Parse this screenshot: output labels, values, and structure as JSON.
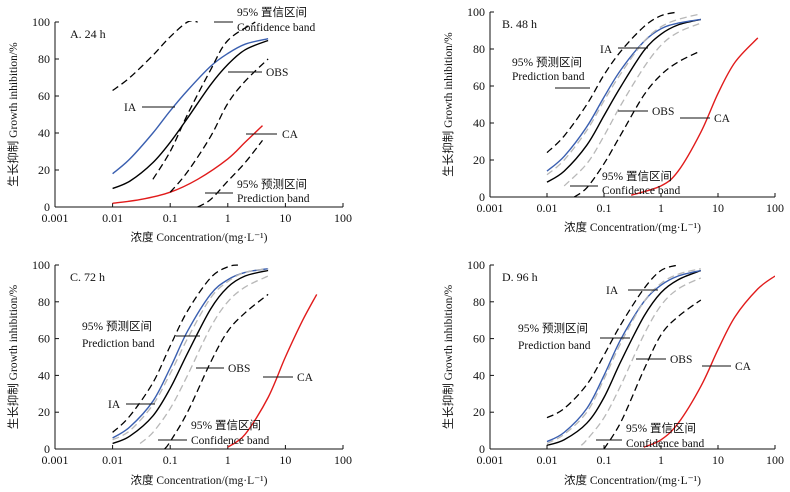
{
  "figure": {
    "panels": [
      {
        "panel_label": "A. 24 h",
        "ylabel": "生长抑制 Growth inhibition/%",
        "xlabel": "浓度 Concentration/(mg·L⁻¹)",
        "xticks": [
          "0.001",
          "0.01",
          "0.1",
          "1",
          "10",
          "100"
        ],
        "yticks": [
          "0",
          "20",
          "40",
          "60",
          "80",
          "100"
        ],
        "annotations": {
          "ia": "IA",
          "obs": "OBS",
          "ca": "CA",
          "confidence_zh": "95% 置信区间",
          "confidence_en": "Confidence band",
          "prediction_zh": "95% 预测区间",
          "prediction_en": "Prediction band"
        }
      },
      {
        "panel_label": "B. 48 h",
        "ylabel": "生长抑制 Growth inhibition/%",
        "xlabel": "浓度 Concentration/(mg·L⁻¹)",
        "xticks": [
          "0.001",
          "0.01",
          "0.1",
          "1",
          "10",
          "100"
        ],
        "yticks": [
          "0",
          "20",
          "40",
          "60",
          "80",
          "100"
        ],
        "annotations": {
          "ia": "IA",
          "obs": "OBS",
          "ca": "CA",
          "confidence_zh": "95% 置信区间",
          "confidence_en": "Confidence band",
          "prediction_zh": "95% 预测区间",
          "prediction_en": "Prediction band"
        }
      },
      {
        "panel_label": "C. 72 h",
        "ylabel": "生长抑制 Growth inhibition/%",
        "xlabel": "浓度 Concentration/(mg·L⁻¹)",
        "xticks": [
          "0.001",
          "0.01",
          "0.1",
          "1",
          "10",
          "100"
        ],
        "yticks": [
          "0",
          "20",
          "40",
          "60",
          "80",
          "100"
        ],
        "annotations": {
          "ia": "IA",
          "obs": "OBS",
          "ca": "CA",
          "confidence_zh": "95% 置信区间",
          "confidence_en": "Confidence band",
          "prediction_zh": "95% 预测区间",
          "prediction_en": "Prediction band"
        }
      },
      {
        "panel_label": "D. 96 h",
        "ylabel": "生长抑制 Growth inhibition/%",
        "xlabel": "浓度 Concentration/(mg·L⁻¹)",
        "xticks": [
          "0.001",
          "0.01",
          "0.1",
          "1",
          "10",
          "100"
        ],
        "yticks": [
          "0",
          "20",
          "40",
          "60",
          "80",
          "100"
        ],
        "annotations": {
          "ia": "IA",
          "obs": "OBS",
          "ca": "CA",
          "confidence_zh": "95% 置信区间",
          "confidence_en": "Confidence band",
          "prediction_zh": "95% 预测区间",
          "prediction_en": "Prediction band"
        }
      }
    ]
  },
  "chart_data": [
    {
      "type": "line",
      "panel": "A. 24 h",
      "xscale": "log",
      "xlim": [
        0.001,
        100
      ],
      "ylim": [
        0,
        100
      ],
      "xlabel": "浓度 Concentration/(mg·L⁻¹)",
      "ylabel": "生长抑制 Growth inhibition/%",
      "series": [
        {
          "name": "OBS",
          "color": "#000000",
          "dash": "solid",
          "x": [
            0.01,
            0.02,
            0.05,
            0.1,
            0.2,
            0.5,
            1,
            2,
            5
          ],
          "y": [
            10,
            14,
            24,
            35,
            48,
            66,
            77,
            85,
            90
          ]
        },
        {
          "name": "IA",
          "color": "#3a5fb0",
          "dash": "solid",
          "x": [
            0.01,
            0.02,
            0.05,
            0.1,
            0.2,
            0.5,
            1,
            2,
            5
          ],
          "y": [
            18,
            26,
            40,
            52,
            63,
            76,
            83,
            88,
            91
          ]
        },
        {
          "name": "CA",
          "color": "#e11b1b",
          "dash": "solid",
          "x": [
            0.01,
            0.03,
            0.1,
            0.3,
            1,
            2,
            4
          ],
          "y": [
            2,
            4,
            8,
            15,
            26,
            35,
            44
          ]
        },
        {
          "name": "95% 置信区间",
          "color": "#000000",
          "dash": "dash",
          "x": [
            0.05,
            0.1,
            0.2,
            0.5,
            1,
            3
          ],
          "y": [
            15,
            30,
            50,
            74,
            90,
            100
          ]
        },
        {
          "name": "95% 置信区间",
          "color": "#000000",
          "dash": "dash",
          "x": [
            0.1,
            0.2,
            0.5,
            1,
            2,
            5
          ],
          "y": [
            8,
            19,
            38,
            56,
            68,
            80
          ]
        },
        {
          "name": "95% 预测区间",
          "color": "#000000",
          "dash": "dash",
          "x": [
            0.01,
            0.02,
            0.05,
            0.1,
            0.2,
            0.3
          ],
          "y": [
            63,
            70,
            82,
            92,
            100,
            100
          ]
        },
        {
          "name": "95% 预测区间",
          "color": "#000000",
          "dash": "dash",
          "x": [
            0.3,
            0.5,
            1,
            2,
            4
          ],
          "y": [
            0,
            4,
            14,
            24,
            36
          ]
        }
      ]
    },
    {
      "type": "line",
      "panel": "B. 48 h",
      "xscale": "log",
      "xlim": [
        0.001,
        100
      ],
      "ylim": [
        0,
        100
      ],
      "xlabel": "浓度 Concentration/(mg·L⁻¹)",
      "ylabel": "生长抑制 Growth inhibition/%",
      "series": [
        {
          "name": "OBS",
          "color": "#000000",
          "dash": "solid",
          "x": [
            0.01,
            0.02,
            0.05,
            0.1,
            0.2,
            0.5,
            1,
            2,
            5
          ],
          "y": [
            8,
            14,
            28,
            44,
            60,
            79,
            88,
            93,
            96
          ]
        },
        {
          "name": "IA",
          "color": "#3a5fb0",
          "dash": "solid",
          "x": [
            0.01,
            0.02,
            0.05,
            0.1,
            0.2,
            0.5,
            1,
            2,
            5
          ],
          "y": [
            14,
            22,
            38,
            54,
            69,
            84,
            91,
            94,
            96
          ]
        },
        {
          "name": "CA",
          "color": "#e11b1b",
          "dash": "solid",
          "x": [
            0.3,
            1,
            2,
            5,
            10,
            20,
            50
          ],
          "y": [
            1,
            6,
            14,
            35,
            56,
            73,
            86
          ]
        },
        {
          "name": "95% 置信区间",
          "color": "#b8b8b8",
          "dash": "dash",
          "x": [
            0.01,
            0.02,
            0.05,
            0.1,
            0.2,
            0.5,
            1,
            2,
            5
          ],
          "y": [
            12,
            20,
            36,
            52,
            67,
            84,
            92,
            96,
            99
          ]
        },
        {
          "name": "95% 置信区间",
          "color": "#b8b8b8",
          "dash": "dash",
          "x": [
            0.02,
            0.05,
            0.1,
            0.2,
            0.5,
            1,
            2,
            5
          ],
          "y": [
            6,
            18,
            33,
            50,
            70,
            82,
            89,
            94
          ]
        },
        {
          "name": "95% 预测区间",
          "color": "#000000",
          "dash": "dash",
          "x": [
            0.01,
            0.02,
            0.05,
            0.1,
            0.2,
            0.5,
            1,
            2
          ],
          "y": [
            24,
            33,
            50,
            66,
            79,
            92,
            98,
            100
          ]
        },
        {
          "name": "95% 预测区间",
          "color": "#000000",
          "dash": "dash",
          "x": [
            0.03,
            0.05,
            0.1,
            0.2,
            0.5,
            1,
            2,
            5
          ],
          "y": [
            0,
            5,
            18,
            34,
            55,
            66,
            73,
            79
          ]
        }
      ]
    },
    {
      "type": "line",
      "panel": "C. 72 h",
      "xscale": "log",
      "xlim": [
        0.001,
        100
      ],
      "ylim": [
        0,
        100
      ],
      "xlabel": "浓度 Concentration/(mg·L⁻¹)",
      "ylabel": "生长抑制 Growth inhibition/%",
      "series": [
        {
          "name": "OBS",
          "color": "#000000",
          "dash": "solid",
          "x": [
            0.01,
            0.02,
            0.05,
            0.1,
            0.2,
            0.5,
            1,
            2,
            5
          ],
          "y": [
            3,
            7,
            18,
            33,
            52,
            76,
            88,
            94,
            97
          ]
        },
        {
          "name": "IA",
          "color": "#3a5fb0",
          "dash": "solid",
          "x": [
            0.01,
            0.02,
            0.05,
            0.1,
            0.2,
            0.5,
            1,
            2,
            5
          ],
          "y": [
            6,
            12,
            26,
            44,
            64,
            84,
            92,
            96,
            98
          ]
        },
        {
          "name": "CA",
          "color": "#e11b1b",
          "dash": "solid",
          "x": [
            1,
            2,
            5,
            10,
            20,
            35
          ],
          "y": [
            1,
            8,
            28,
            50,
            70,
            84
          ]
        },
        {
          "name": "95% 置信区间",
          "color": "#b8b8b8",
          "dash": "dash",
          "x": [
            0.01,
            0.02,
            0.05,
            0.1,
            0.2,
            0.5,
            1,
            2,
            5
          ],
          "y": [
            5,
            10,
            24,
            41,
            60,
            82,
            91,
            96,
            98
          ]
        },
        {
          "name": "95% 置信区间",
          "color": "#b8b8b8",
          "dash": "dash",
          "x": [
            0.03,
            0.05,
            0.1,
            0.2,
            0.5,
            1,
            2,
            5
          ],
          "y": [
            3,
            9,
            22,
            40,
            66,
            80,
            88,
            94
          ]
        },
        {
          "name": "95% 预测区间",
          "color": "#000000",
          "dash": "dash",
          "x": [
            0.01,
            0.02,
            0.05,
            0.1,
            0.2,
            0.5,
            1,
            1.5
          ],
          "y": [
            9,
            18,
            36,
            56,
            75,
            93,
            99,
            100
          ]
        },
        {
          "name": "95% 预测区间",
          "color": "#000000",
          "dash": "dash",
          "x": [
            0.08,
            0.1,
            0.2,
            0.5,
            1,
            2,
            5
          ],
          "y": [
            0,
            4,
            20,
            47,
            64,
            74,
            84
          ]
        }
      ]
    },
    {
      "type": "line",
      "panel": "D. 96 h",
      "xscale": "log",
      "xlim": [
        0.001,
        100
      ],
      "ylim": [
        0,
        100
      ],
      "xlabel": "浓度 Concentration/(mg·L⁻¹)",
      "ylabel": "生长抑制 Growth inhibition/%",
      "series": [
        {
          "name": "OBS",
          "color": "#000000",
          "dash": "solid",
          "x": [
            0.01,
            0.02,
            0.05,
            0.1,
            0.2,
            0.5,
            1,
            2,
            5
          ],
          "y": [
            2,
            5,
            14,
            28,
            48,
            72,
            85,
            92,
            97
          ]
        },
        {
          "name": "IA",
          "color": "#3a5fb0",
          "dash": "solid",
          "x": [
            0.01,
            0.02,
            0.05,
            0.1,
            0.2,
            0.5,
            1,
            2,
            5
          ],
          "y": [
            4,
            9,
            22,
            40,
            60,
            80,
            89,
            94,
            97
          ]
        },
        {
          "name": "CA",
          "color": "#e11b1b",
          "dash": "solid",
          "x": [
            0.5,
            1,
            2,
            5,
            10,
            20,
            50,
            100
          ],
          "y": [
            1,
            5,
            14,
            34,
            54,
            72,
            87,
            94
          ]
        },
        {
          "name": "95% 置信区间",
          "color": "#b8b8b8",
          "dash": "dash",
          "x": [
            0.01,
            0.02,
            0.05,
            0.1,
            0.2,
            0.5,
            1,
            2,
            5
          ],
          "y": [
            3,
            8,
            20,
            38,
            58,
            80,
            90,
            95,
            98
          ]
        },
        {
          "name": "95% 置信区间",
          "color": "#b8b8b8",
          "dash": "dash",
          "x": [
            0.04,
            0.05,
            0.1,
            0.2,
            0.5,
            1,
            2,
            5
          ],
          "y": [
            2,
            5,
            17,
            35,
            62,
            78,
            87,
            93
          ]
        },
        {
          "name": "95% 预测区间",
          "color": "#000000",
          "dash": "dash",
          "x": [
            0.01,
            0.02,
            0.05,
            0.1,
            0.2,
            0.5,
            1,
            2
          ],
          "y": [
            17,
            22,
            35,
            51,
            68,
            87,
            97,
            100
          ]
        },
        {
          "name": "95% 预测区间",
          "color": "#000000",
          "dash": "dash",
          "x": [
            0.1,
            0.2,
            0.5,
            1,
            2,
            5
          ],
          "y": [
            0,
            15,
            43,
            62,
            72,
            81
          ]
        }
      ]
    }
  ]
}
